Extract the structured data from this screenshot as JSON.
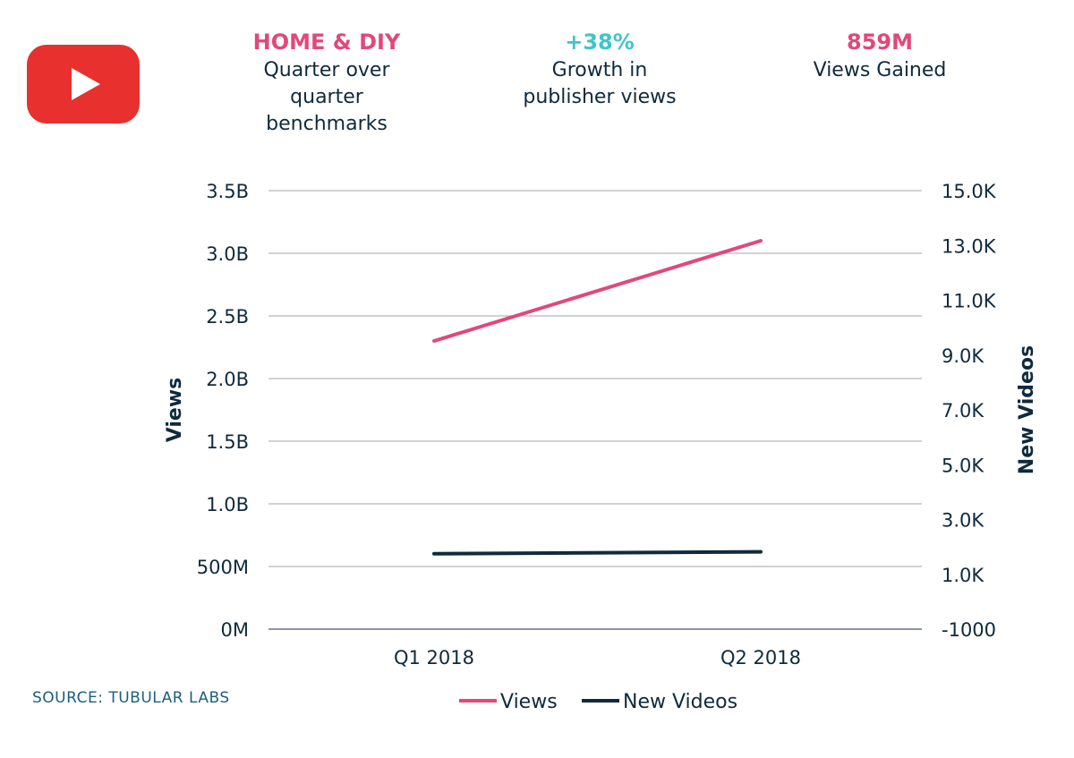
{
  "header": {
    "stats": [
      {
        "head": "HOME & DIY",
        "sub": "Quarter over quarter benchmarks",
        "color": "#e0497a"
      },
      {
        "head": "+38%",
        "sub": "Growth in publisher views",
        "color": "#3ec6c9"
      },
      {
        "head": "859M",
        "sub": "Views Gained",
        "color": "#e0497a"
      }
    ]
  },
  "logo": {
    "icon": "youtube-play-icon",
    "color": "#e8302e"
  },
  "source": "SOURCE: TUBULAR LABS",
  "chart_data": {
    "type": "line",
    "categories": [
      "Q1 2018",
      "Q2 2018"
    ],
    "series": [
      {
        "name": "Views",
        "axis": "left",
        "color": "#e0497a",
        "values": [
          2300000000,
          3100000000
        ]
      },
      {
        "name": "New Videos",
        "axis": "right",
        "color": "#0f2a3d",
        "values": [
          1750,
          1820
        ]
      }
    ],
    "y_left": {
      "label": "Views",
      "ylim": [
        0,
        3500000000
      ],
      "ticks": [
        0,
        500000000,
        1000000000,
        1500000000,
        2000000000,
        2500000000,
        3000000000,
        3500000000
      ],
      "tick_labels": [
        "0M",
        "500M",
        "1.0B",
        "1.5B",
        "2.0B",
        "2.5B",
        "3.0B",
        "3.5B"
      ]
    },
    "y_right": {
      "label": "New Videos",
      "ylim": [
        -1000,
        15000
      ],
      "ticks": [
        -1000,
        1000,
        3000,
        5000,
        7000,
        9000,
        11000,
        13000,
        15000
      ],
      "tick_labels": [
        "-1000",
        "1.0K",
        "3.0K",
        "5.0K",
        "7.0K",
        "9.0K",
        "11.0K",
        "13.0K",
        "15.0K"
      ]
    },
    "grid": true,
    "legend_position": "bottom",
    "grid_color": "#c4c4c4"
  }
}
